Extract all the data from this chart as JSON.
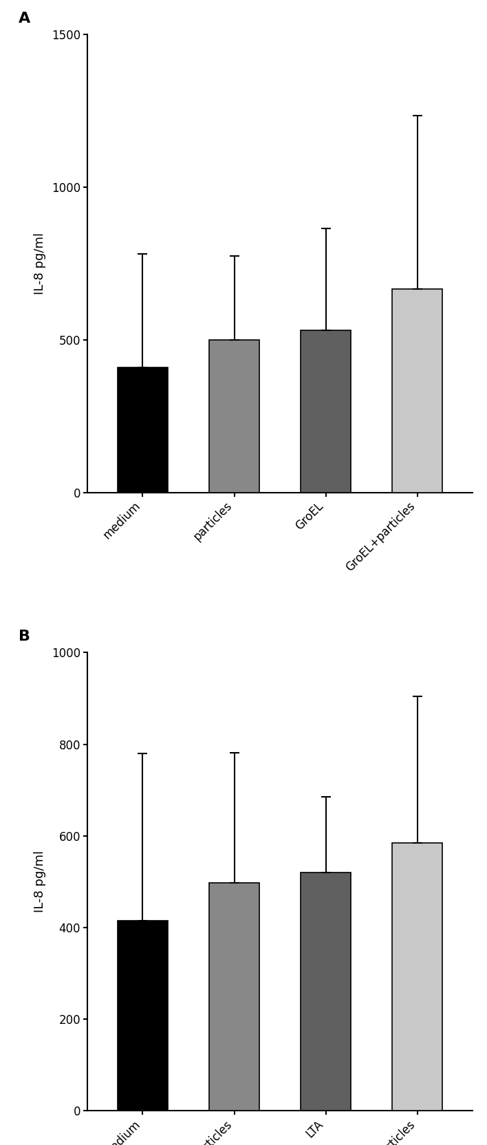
{
  "panel_A": {
    "categories": [
      "medium",
      "particles",
      "GroEL",
      "GroEL+particles"
    ],
    "values": [
      410,
      500,
      530,
      665
    ],
    "errors_upper": [
      370,
      275,
      335,
      570
    ],
    "errors_lower": [
      0,
      0,
      0,
      0
    ],
    "colors": [
      "#000000",
      "#888888",
      "#606060",
      "#c8c8c8"
    ],
    "ylabel": "IL-8 pg/ml",
    "ylim": [
      0,
      1500
    ],
    "yticks": [
      0,
      500,
      1000,
      1500
    ],
    "label": "A"
  },
  "panel_B": {
    "categories": [
      "medium",
      "particles",
      "LTA",
      "LTA+particles"
    ],
    "values": [
      415,
      497,
      520,
      585
    ],
    "errors_upper": [
      365,
      285,
      165,
      320
    ],
    "errors_lower": [
      0,
      0,
      0,
      0
    ],
    "colors": [
      "#000000",
      "#888888",
      "#606060",
      "#c8c8c8"
    ],
    "ylabel": "IL-8 pg/ml",
    "ylim": [
      0,
      1000
    ],
    "yticks": [
      0,
      200,
      400,
      600,
      800,
      1000
    ],
    "label": "B"
  },
  "bar_width": 0.55,
  "errorbar_capsize": 5,
  "errorbar_linewidth": 1.5,
  "tick_label_fontsize": 12,
  "axis_label_fontsize": 13,
  "panel_label_fontsize": 16
}
